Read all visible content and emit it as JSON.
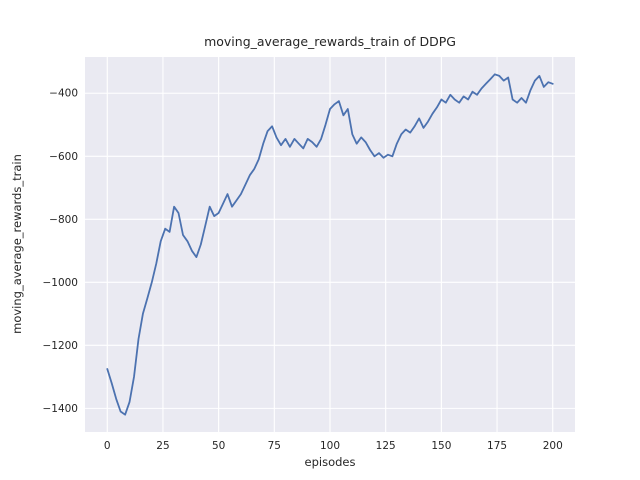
{
  "chart_data": {
    "type": "line",
    "title": "moving_average_rewards_train of DDPG",
    "xlabel": "episodes",
    "ylabel": "moving_average_rewards_train",
    "xlim": [
      -10,
      210
    ],
    "ylim": [
      -1475,
      -285
    ],
    "xticks": [
      0,
      25,
      50,
      75,
      100,
      125,
      150,
      175,
      200
    ],
    "yticks": [
      -1400,
      -1200,
      -1000,
      -800,
      -600,
      -400
    ],
    "grid": true,
    "legend": "none",
    "series_name": "moving_average_rewards_train",
    "x": [
      0,
      2,
      4,
      6,
      8,
      10,
      12,
      14,
      16,
      18,
      20,
      22,
      24,
      26,
      28,
      30,
      32,
      34,
      36,
      38,
      40,
      42,
      44,
      46,
      48,
      50,
      52,
      54,
      56,
      58,
      60,
      62,
      64,
      66,
      68,
      70,
      72,
      74,
      76,
      78,
      80,
      82,
      84,
      86,
      88,
      90,
      92,
      94,
      96,
      98,
      100,
      102,
      104,
      106,
      108,
      110,
      112,
      114,
      116,
      118,
      120,
      122,
      124,
      126,
      128,
      130,
      132,
      134,
      136,
      138,
      140,
      142,
      144,
      146,
      148,
      150,
      152,
      154,
      156,
      158,
      160,
      162,
      164,
      166,
      168,
      170,
      172,
      174,
      176,
      178,
      180,
      182,
      184,
      186,
      188,
      190,
      192,
      194,
      196,
      198,
      200
    ],
    "y": [
      -1275,
      -1320,
      -1370,
      -1410,
      -1420,
      -1380,
      -1300,
      -1180,
      -1100,
      -1050,
      -1000,
      -940,
      -870,
      -830,
      -840,
      -760,
      -780,
      -850,
      -870,
      -900,
      -920,
      -880,
      -820,
      -760,
      -790,
      -780,
      -750,
      -720,
      -760,
      -740,
      -720,
      -690,
      -660,
      -640,
      -610,
      -560,
      -520,
      -505,
      -540,
      -565,
      -545,
      -570,
      -545,
      -560,
      -575,
      -545,
      -555,
      -570,
      -545,
      -500,
      -450,
      -435,
      -425,
      -470,
      -450,
      -530,
      -560,
      -540,
      -555,
      -580,
      -600,
      -590,
      -605,
      -595,
      -600,
      -560,
      -530,
      -515,
      -525,
      -505,
      -480,
      -510,
      -490,
      -465,
      -445,
      -420,
      -430,
      -405,
      -420,
      -430,
      -410,
      -420,
      -395,
      -405,
      -385,
      -370,
      -355,
      -340,
      -345,
      -360,
      -350,
      -420,
      -430,
      -415,
      -430,
      -390,
      -360,
      -345,
      -380,
      -365,
      -370
    ],
    "colors": {
      "line": "#4C72B0",
      "axes_bg": "#EAEAF2",
      "gridline": "#FFFFFF",
      "text": "#262626"
    }
  }
}
